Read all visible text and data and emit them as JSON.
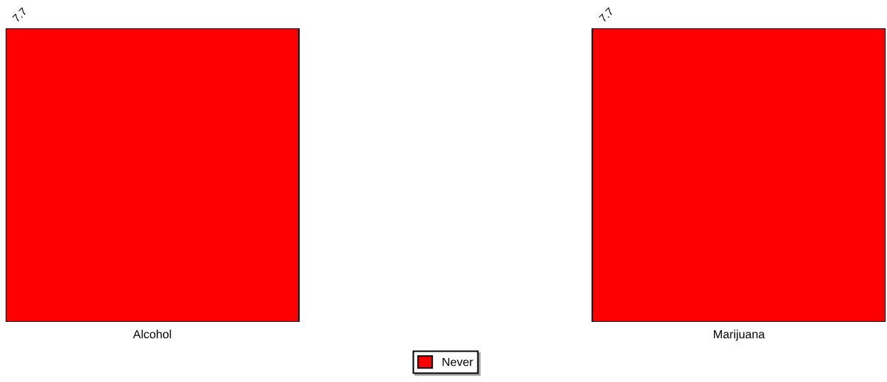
{
  "chart_data": {
    "type": "bar",
    "categories": [
      "Alcohol",
      "Marijuana"
    ],
    "series": [
      {
        "name": "Never",
        "color": "#ff0000",
        "values": [
          7.7,
          7.7
        ]
      }
    ],
    "data_labels": true,
    "legend": "bottom",
    "grid": false,
    "tick_labels": "x"
  }
}
